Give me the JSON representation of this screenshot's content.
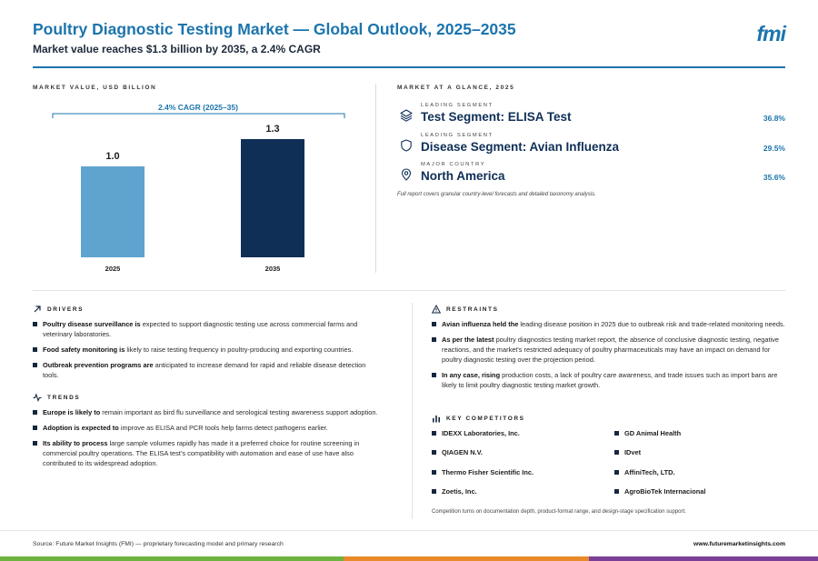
{
  "header": {
    "title": "Poultry Diagnostic Testing Market — Global Outlook, 2025–2035",
    "subtitle": "Market value reaches $1.3 billion by 2035, a 2.4% CAGR",
    "logo": "fmi"
  },
  "market_value": {
    "section_label": "MARKET VALUE, USD BILLION"
  },
  "chart_data": {
    "type": "bar",
    "categories": [
      "2025",
      "2035"
    ],
    "values": [
      1.0,
      1.3
    ],
    "data_labels": [
      "1.0",
      "1.3"
    ],
    "annotation": "2.4% CAGR (2025–35)",
    "title": "",
    "xlabel": "",
    "ylabel": "",
    "ylim": [
      0,
      1.3
    ],
    "grid": false,
    "bar_colors": [
      "#5fa3cf",
      "#0f2f57"
    ]
  },
  "glance": {
    "section_label": "MARKET AT A GLANCE, 2025",
    "items": [
      {
        "sub": "LEADING SEGMENT",
        "main": "Test Segment: ELISA Test",
        "pct": "36.8%",
        "icon": "layers-icon"
      },
      {
        "sub": "LEADING SEGMENT",
        "main": "Disease Segment: Avian Influenza",
        "pct": "29.5%",
        "icon": "shield-icon"
      },
      {
        "sub": "MAJOR COUNTRY",
        "main": "North America",
        "pct": "35.6%",
        "icon": "map-pin-icon"
      }
    ],
    "note": "Full report covers granular country-level forecasts and detailed taxonomy analysis."
  },
  "drivers": {
    "label": "DRIVERS",
    "items": [
      {
        "bold": "Poultry disease surveillance is",
        "text": " expected to support diagnostic testing use across commercial farms and veterinary laboratories."
      },
      {
        "bold": "Food safety monitoring is",
        "text": " likely to raise testing frequency in poultry-producing and exporting countries."
      },
      {
        "bold": "Outbreak prevention programs are",
        "text": " anticipated to increase demand for rapid and reliable disease detection tools."
      }
    ]
  },
  "trends": {
    "label": "TRENDS",
    "items": [
      {
        "bold": "Europe is likely to",
        "text": " remain important as bird flu surveillance and serological testing awareness support adoption."
      },
      {
        "bold": "Adoption is expected to",
        "text": " improve as ELISA and PCR tools help farms detect pathogens earlier."
      },
      {
        "bold": "Its ability to process",
        "text": " large sample volumes rapidly has made it a preferred choice for routine screening in commercial poultry operations. The ELISA test’s compatibility with automation and ease of use have also contributed to its widespread adoption."
      }
    ]
  },
  "restraints": {
    "label": "RESTRAINTS",
    "items": [
      {
        "bold": "Avian influenza held the",
        "text": " leading disease position in 2025 due to outbreak risk and trade-related monitoring needs."
      },
      {
        "bold": "As per the latest",
        "text": " poultry diagnostics testing market report, the absence of conclusive diagnostic testing, negative reactions, and the market's restricted adequacy of poultry pharmaceuticals may have an impact on demand for poultry diagnostic testing over the projection period."
      },
      {
        "bold": "In any case, rising",
        "text": " production costs, a lack of poultry care awareness, and trade issues such as import bans are likely to limit poultry diagnostic testing market growth."
      }
    ]
  },
  "competitors": {
    "label": "KEY COMPETITORS",
    "left": [
      "IDEXX Laboratories, Inc.",
      "QIAGEN N.V.",
      "Thermo Fisher Scientific Inc.",
      "Zoetis, Inc."
    ],
    "right": [
      "GD Animal Health",
      "IDvet",
      "AffiniTech, LTD.",
      "AgroBioTek Internacional"
    ],
    "note": "Competition turns on documentation depth, product-format range, and design-stage specification support."
  },
  "footer": {
    "source": "Source: Future Market Insights (FMI) — proprietary forecasting model and primary research",
    "url": "www.futuremarketinsights.com",
    "stripe_colors": [
      "#6cb33f",
      "#e98b2a",
      "#7b3f98"
    ]
  }
}
